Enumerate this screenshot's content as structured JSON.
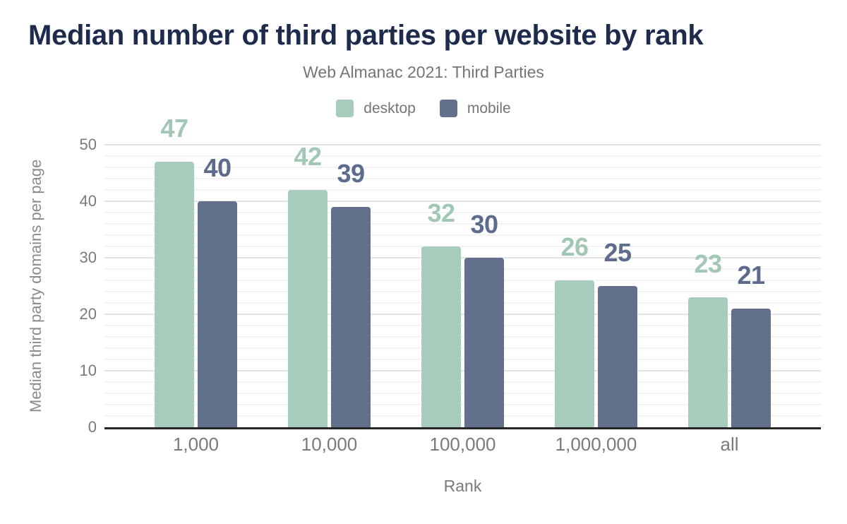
{
  "chart_data": {
    "type": "bar",
    "title": "Median number of third parties per website by rank",
    "subtitle": "Web Almanac 2021: Third Parties",
    "xlabel": "Rank",
    "ylabel": "Median third party domains per page",
    "categories": [
      "1,000",
      "10,000",
      "100,000",
      "1,000,000",
      "all"
    ],
    "series": [
      {
        "name": "desktop",
        "color": "#a8ccbb",
        "label_color": "#a2c8b5",
        "values": [
          47,
          42,
          32,
          26,
          23
        ]
      },
      {
        "name": "mobile",
        "color": "#62708c",
        "label_color": "#5d6c8c",
        "values": [
          40,
          39,
          30,
          25,
          21
        ]
      }
    ],
    "ylim": [
      0,
      50
    ],
    "yticks": [
      0,
      10,
      20,
      30,
      40,
      50
    ],
    "minor_grid_step": 2,
    "grid": true,
    "legend_position": "top",
    "data_labels": true
  },
  "colors": {
    "background": "#ffffff",
    "title_text": "#1e2b4d",
    "muted_text": "#757575",
    "axis_line": "#262626",
    "gridline_major": "#e4e4e4",
    "gridline_minor": "#f3f3f3"
  }
}
